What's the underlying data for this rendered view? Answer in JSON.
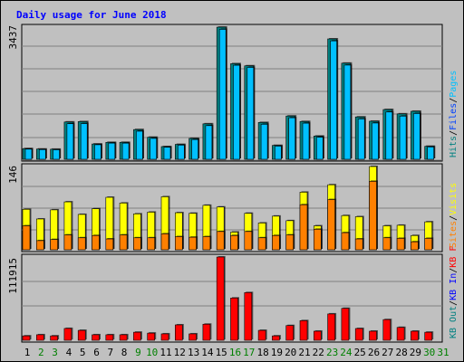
{
  "chart_data": {
    "title": "Daily usage for June 2018",
    "x_labels": [
      "1",
      "2",
      "3",
      "4",
      "5",
      "6",
      "7",
      "8",
      "9",
      "10",
      "11",
      "12",
      "13",
      "14",
      "15",
      "16",
      "17",
      "18",
      "19",
      "20",
      "21",
      "22",
      "23",
      "24",
      "25",
      "26",
      "27",
      "28",
      "29",
      "30",
      "31"
    ],
    "weekend_days": [
      "2",
      "3",
      "9",
      "10",
      "16",
      "17",
      "23",
      "24",
      "30",
      "31"
    ],
    "panels": [
      {
        "type": "bar",
        "ymax_label": "3437",
        "ylim": [
          0,
          3437
        ],
        "legend": [
          {
            "name": "Pages",
            "color": "#00c0ff"
          },
          {
            "name": "Files",
            "color": "#0040ff"
          },
          {
            "name": "Hits",
            "color": "#008080"
          }
        ],
        "series": [
          {
            "name": "Hits",
            "values": [
              278,
              266,
              262,
              970,
              980,
              398,
              440,
              441,
              773,
              574,
              330,
              387,
              543,
              922,
              3437,
              2487,
              2431,
              957,
              361,
              1126,
              983,
              604,
              3131,
              2500,
              1102,
              990,
              1294,
              1181,
              1249,
              338
            ]
          },
          {
            "name": "Files",
            "values": [
              264,
              252,
              247,
              925,
              928,
              378,
              420,
              419,
              730,
              543,
              313,
              368,
              513,
              875,
              3380,
              2445,
              2390,
              910,
              342,
              1080,
              939,
              574,
              3080,
              2450,
              1050,
              943,
              1230,
              1123,
              1190,
              320
            ]
          }
        ]
      },
      {
        "type": "bar",
        "ymax_label": "146",
        "ylim": [
          0,
          146
        ],
        "legend": [
          {
            "name": "Visits",
            "color": "#ffff00"
          },
          {
            "name": "Sites",
            "color": "#ff8000"
          }
        ],
        "series": [
          {
            "name": "Visits",
            "values": [
              71,
              54,
              70,
              84,
              62,
              72,
              92,
              82,
              63,
              66,
              93,
              65,
              64,
              78,
              75,
              31,
              64,
              47,
              59,
              51,
              101,
              42,
              114,
              60,
              58,
              146,
              42,
              43,
              25,
              49
            ]
          },
          {
            "name": "Sites",
            "values": [
              42,
              16,
              18,
              26,
              21,
              25,
              19,
              26,
              21,
              21,
              28,
              23,
              22,
              23,
              32,
              25,
              32,
              21,
              25,
              26,
              79,
              36,
              88,
              30,
              19,
              120,
              21,
              20,
              14,
              20
            ]
          }
        ]
      },
      {
        "type": "bar",
        "ymax_label": "111915",
        "ylim": [
          0,
          111915
        ],
        "legend": [
          {
            "name": "KB F",
            "color": "#ff0000"
          },
          {
            "name": "KB In",
            "color": "#0000ff"
          },
          {
            "name": "KB Out",
            "color": "#008080"
          }
        ],
        "series": [
          {
            "name": "KB F",
            "values": [
              5900,
              7400,
              5900,
              15900,
              13300,
              7400,
              7400,
              7400,
              10800,
              9600,
              8600,
              20700,
              8600,
              21600,
              111915,
              56800,
              64100,
              13300,
              5900,
              19800,
              26400,
              12200,
              35400,
              42900,
              15800,
              12200,
              27800,
              17300,
              12200,
              10800
            ]
          }
        ]
      }
    ]
  }
}
